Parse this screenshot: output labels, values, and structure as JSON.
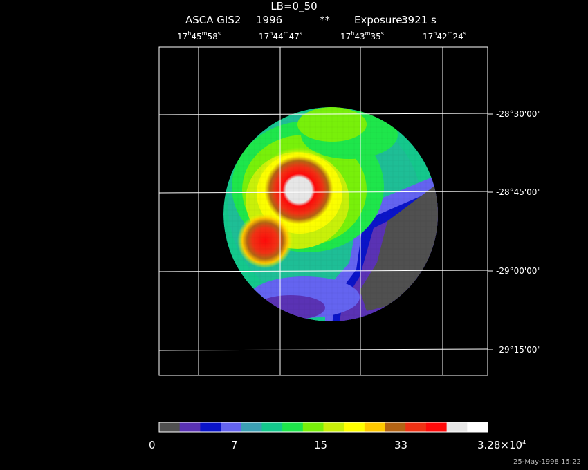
{
  "header": {
    "title": "LB=0_50",
    "instrument": "ASCA GIS2",
    "year": "1996",
    "marker": "**",
    "exposure_label": "Exposure:",
    "exposure_value": "3921 s"
  },
  "ra_ticks": [
    {
      "h": "17",
      "m": "45",
      "s": "58"
    },
    {
      "h": "17",
      "m": "44",
      "s": "47"
    },
    {
      "h": "17",
      "m": "43",
      "s": "35"
    },
    {
      "h": "17",
      "m": "42",
      "s": "24"
    }
  ],
  "dec_ticks": [
    "-28°30'00\"",
    "-28°45'00\"",
    "-29°00'00\"",
    "-29°15'00\""
  ],
  "colorbar": {
    "colors": [
      "#505050",
      "#5a32b4",
      "#0a14c8",
      "#6464f0",
      "#3ca0b4",
      "#14c88c",
      "#1ee64b",
      "#78f00a",
      "#c8f00a",
      "#ffff00",
      "#ffc800",
      "#b46414",
      "#f03214",
      "#ff0a0a",
      "#e6e6e6",
      "#ffffff"
    ],
    "labels": [
      "0",
      "7",
      "15",
      "33"
    ],
    "max_label": "3.28×10",
    "max_exp": "4"
  },
  "timestamp": "25-May-1998 15:22"
}
